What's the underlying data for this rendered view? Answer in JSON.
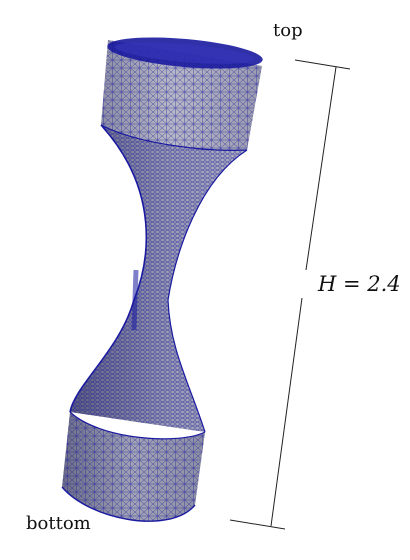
{
  "labels": {
    "top": "top",
    "bottom": "bottom",
    "height": "H = 2.4"
  },
  "colors": {
    "mesh_line": "#1a1aa0",
    "surface_light": "#a7a7b6",
    "surface_dark": "#6c6d86",
    "background": "#ffffff",
    "annotation": "#222222"
  }
}
